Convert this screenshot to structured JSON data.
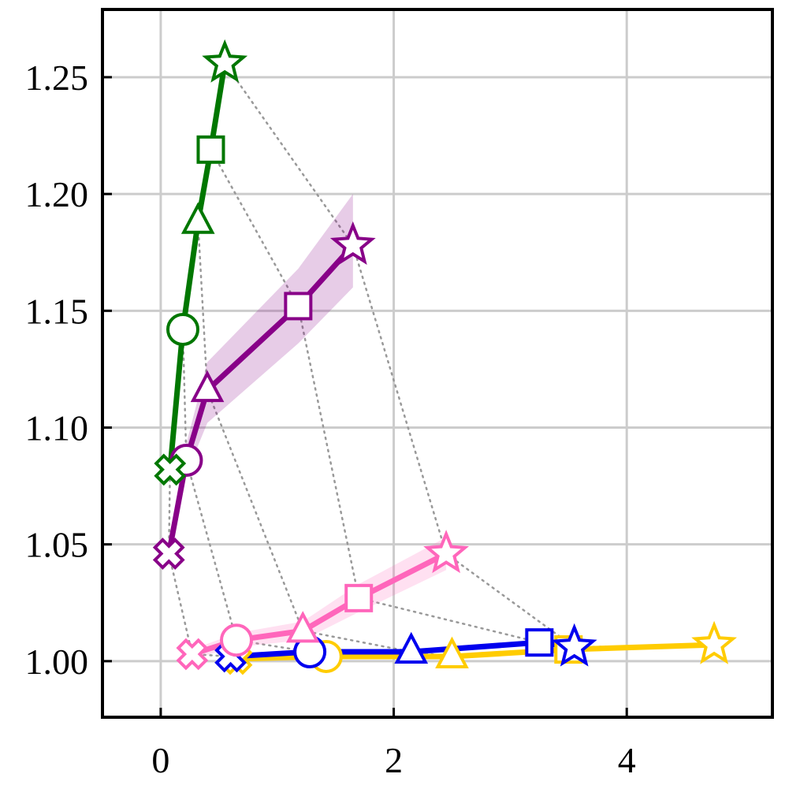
{
  "chart_data": {
    "type": "line",
    "title": "",
    "xlabel": "",
    "ylabel": "",
    "xlim": [
      -0.5,
      5.25
    ],
    "ylim": [
      0.976,
      1.279
    ],
    "xticks": [
      0,
      2,
      4
    ],
    "xtick_labels": [
      "0",
      "2",
      "4"
    ],
    "yticks": [
      1.0,
      1.05,
      1.1,
      1.15,
      1.2,
      1.25
    ],
    "ytick_labels": [
      "1.00",
      "1.05",
      "1.10",
      "1.15",
      "1.20",
      "1.25"
    ],
    "grid": true,
    "legend": "none",
    "marker_sequence": [
      "cross",
      "circle",
      "triangle",
      "square",
      "star"
    ],
    "series": [
      {
        "color": "#ffcc00",
        "x": [
          0.65,
          1.42,
          2.5,
          3.5,
          4.75
        ],
        "y": [
          1.001,
          1.002,
          1.002,
          1.005,
          1.007
        ],
        "band_low": [
          1.0,
          1.001,
          1.001,
          1.004,
          1.006
        ],
        "band_high": [
          1.002,
          1.003,
          1.003,
          1.006,
          1.008
        ]
      },
      {
        "color": "#0000ee",
        "x": [
          0.6,
          1.28,
          2.15,
          3.25,
          3.55
        ],
        "y": [
          1.002,
          1.004,
          1.004,
          1.008,
          1.006
        ],
        "band_low": [
          1.001,
          1.003,
          1.003,
          1.007,
          1.005
        ],
        "band_high": [
          1.003,
          1.005,
          1.005,
          1.009,
          1.007
        ]
      },
      {
        "color": "#ff66bb",
        "x": [
          0.27,
          0.65,
          1.22,
          1.7,
          2.45
        ],
        "y": [
          1.003,
          1.009,
          1.013,
          1.027,
          1.046
        ],
        "band_low": [
          1.001,
          1.006,
          1.009,
          1.021,
          1.039
        ],
        "band_high": [
          1.005,
          1.012,
          1.017,
          1.033,
          1.053
        ]
      },
      {
        "color": "#880088",
        "x": [
          0.07,
          0.22,
          0.4,
          1.18,
          1.65
        ],
        "y": [
          1.046,
          1.086,
          1.116,
          1.152,
          1.178
        ],
        "band_low": [
          1.04,
          1.08,
          1.102,
          1.136,
          1.16
        ],
        "band_high": [
          1.052,
          1.093,
          1.128,
          1.168,
          1.2
        ]
      },
      {
        "color": "#007700",
        "x": [
          0.08,
          0.19,
          0.32,
          0.43,
          0.55
        ],
        "y": [
          1.082,
          1.142,
          1.188,
          1.219,
          1.256
        ],
        "band_low": [
          1.078,
          1.139,
          1.183,
          1.213,
          1.251
        ],
        "band_high": [
          1.087,
          1.146,
          1.193,
          1.226,
          1.261
        ]
      }
    ]
  }
}
